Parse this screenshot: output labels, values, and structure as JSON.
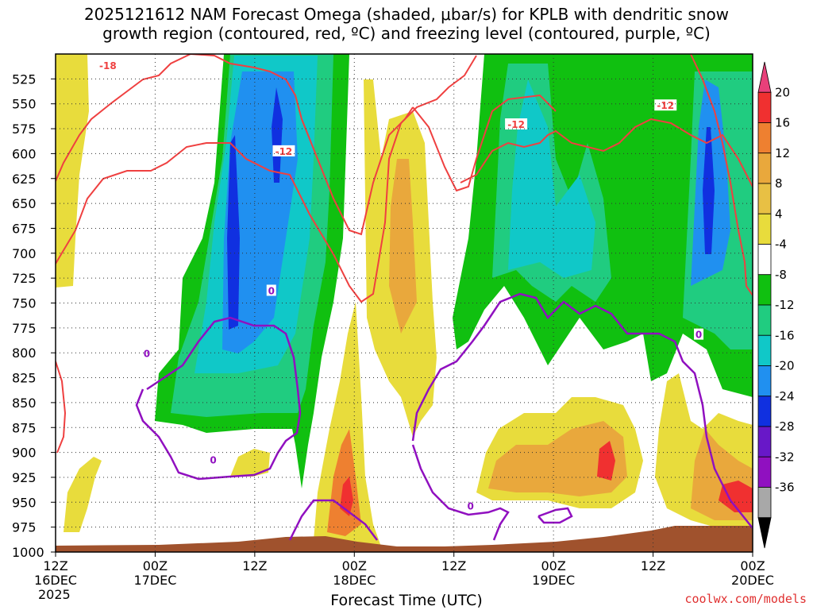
{
  "title": {
    "line1": "2025121612 NAM Forecast Omega (shaded, μbar/s) for KPLB with dendritic snow",
    "line2": "growth region (contoured, red, ºC) and freezing level (contoured, purple, ºC)"
  },
  "credit": "coolwx.com/models",
  "chart_data": {
    "type": "time-height contour",
    "xlabel": "Forecast Time (UTC)",
    "x_ticks": [
      {
        "line1": "12Z",
        "line2": "16DEC",
        "line3": "2025",
        "hours": 0
      },
      {
        "line1": "00Z",
        "line2": "17DEC",
        "line3": "",
        "hours": 12
      },
      {
        "line1": "12Z",
        "line2": "",
        "line3": "",
        "hours": 24
      },
      {
        "line1": "00Z",
        "line2": "18DEC",
        "line3": "",
        "hours": 36
      },
      {
        "line1": "12Z",
        "line2": "",
        "line3": "",
        "hours": 48
      },
      {
        "line1": "00Z",
        "line2": "19DEC",
        "line3": "",
        "hours": 60
      },
      {
        "line1": "12Z",
        "line2": "",
        "line3": "",
        "hours": 72
      },
      {
        "line1": "00Z",
        "line2": "20DEC",
        "line3": "",
        "hours": 84
      }
    ],
    "x_range_hours": [
      0,
      84
    ],
    "y_levels": [
      525,
      550,
      575,
      600,
      625,
      650,
      675,
      700,
      725,
      750,
      775,
      800,
      825,
      850,
      875,
      900,
      925,
      950,
      975,
      1000
    ],
    "y_range": [
      500,
      1000
    ],
    "grid": true,
    "colorbar": {
      "labels": [
        "20",
        "16",
        "12",
        "8",
        "4",
        "-4",
        "-8",
        "-12",
        "-16",
        "-20",
        "-24",
        "-28",
        "-32",
        "-36"
      ],
      "colors": [
        "#e8407a",
        "#f03030",
        "#ee8030",
        "#e9a83c",
        "#e8c044",
        "#e8dc3c",
        "#ffffff",
        "#10c010",
        "#20cc80",
        "#10c8c8",
        "#2090f0",
        "#1030e0",
        "#6818c8",
        "#9010c0",
        "#a8a8a8",
        "#000000"
      ]
    },
    "contour_labels": {
      "red": [
        {
          "text": "-18",
          "x": 6.3,
          "p": 512
        },
        {
          "text": "-12",
          "x": 27.5,
          "p": 598
        },
        {
          "text": "-12",
          "x": 55.5,
          "p": 571
        },
        {
          "text": "-12",
          "x": 73.5,
          "p": 552
        }
      ],
      "purple": [
        {
          "text": "0",
          "x": 11.0,
          "p": 801
        },
        {
          "text": "0",
          "x": 19.0,
          "p": 908
        },
        {
          "text": "0",
          "x": 26.0,
          "p": 738
        },
        {
          "text": "0",
          "x": 50.0,
          "p": 954
        },
        {
          "text": "0",
          "x": 77.5,
          "p": 782
        }
      ]
    }
  }
}
